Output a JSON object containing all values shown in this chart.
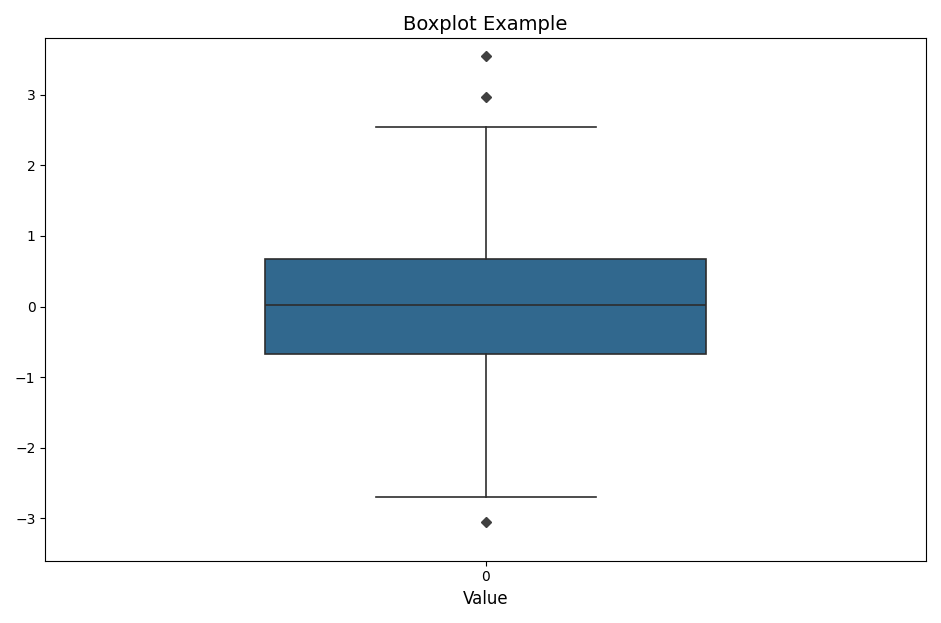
{
  "title": "Boxplot Example",
  "xlabel": "Value",
  "xtick_labels": [
    "0"
  ],
  "box_color": "#31688e",
  "median_color": "#2d2d2d",
  "whisker_color": "#2d2d2d",
  "flier_color": "#404040",
  "median": 0.02,
  "q1": -0.674,
  "q3": 0.674,
  "whisker_low": -2.7,
  "whisker_high": 2.55,
  "outliers": [
    3.55,
    2.97,
    -3.05
  ],
  "ylim": [
    -3.6,
    3.8
  ],
  "figsize": [
    9.41,
    6.23
  ],
  "dpi": 100
}
